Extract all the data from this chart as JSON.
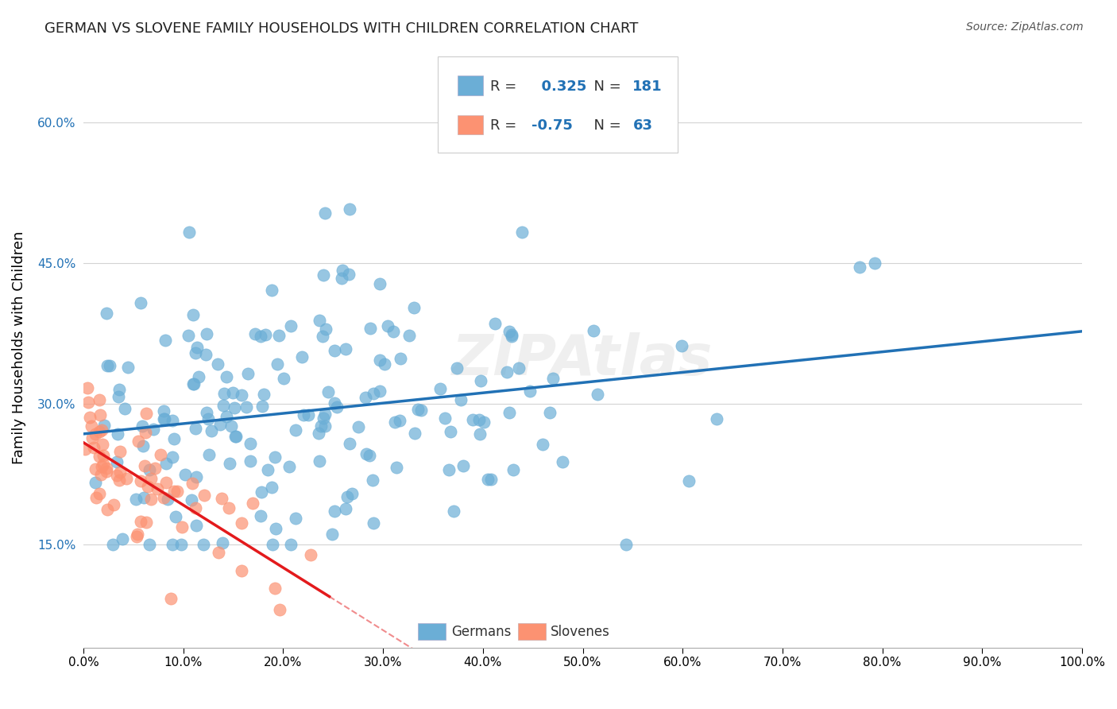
{
  "title": "GERMAN VS SLOVENE FAMILY HOUSEHOLDS WITH CHILDREN CORRELATION CHART",
  "source_text": "Source: ZipAtlas.com",
  "xlabel": "",
  "ylabel": "Family Households with Children",
  "xlim": [
    0,
    1.0
  ],
  "ylim": [
    0.04,
    0.68
  ],
  "xticks": [
    0.0,
    0.1,
    0.2,
    0.3,
    0.4,
    0.5,
    0.6,
    0.7,
    0.8,
    0.9,
    1.0
  ],
  "xtick_labels": [
    "0.0%",
    "10.0%",
    "20.0%",
    "30.0%",
    "40.0%",
    "50.0%",
    "60.0%",
    "70.0%",
    "80.0%",
    "90.0%",
    "100.0%"
  ],
  "yticks": [
    0.15,
    0.3,
    0.45,
    0.6
  ],
  "ytick_labels": [
    "15.0%",
    "30.0%",
    "45.0%",
    "60.0%"
  ],
  "german_color": "#6baed6",
  "german_color_light": "#9ecae1",
  "slovene_color": "#fc9272",
  "slovene_color_light": "#fcbba1",
  "trend_german_color": "#2171b5",
  "trend_slovene_color": "#e31a1c",
  "R_german": 0.325,
  "N_german": 181,
  "R_slovene": -0.75,
  "N_slovene": 63,
  "watermark": "ZIPAtlas",
  "background_color": "#ffffff",
  "grid_color": "#d3d3d3",
  "legend_label_german": "Germans",
  "legend_label_slovene": "Slovenes",
  "seed": 42
}
